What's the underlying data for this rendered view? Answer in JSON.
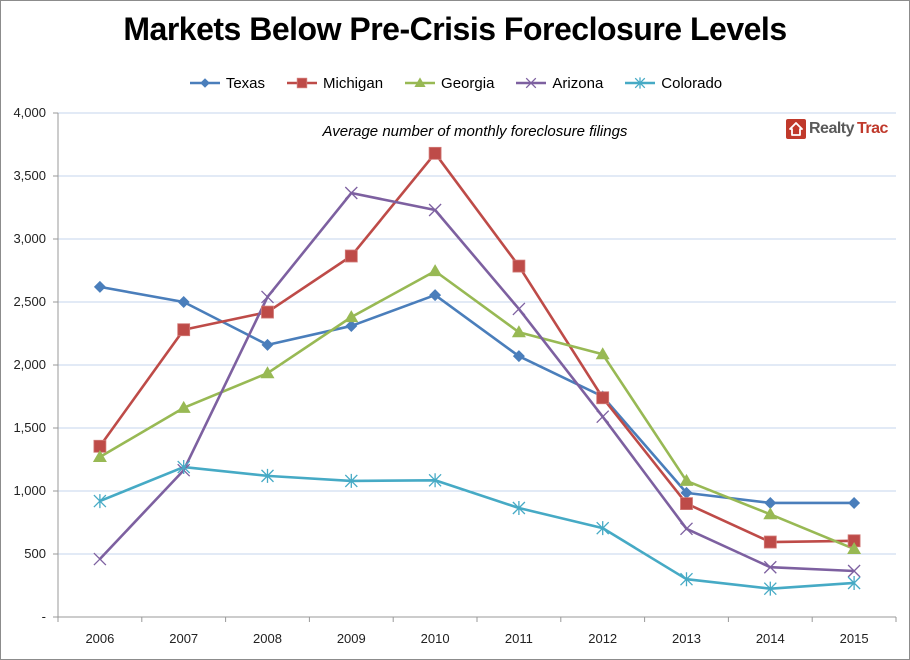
{
  "chart_data": {
    "type": "line",
    "title": "Markets Below Pre-Crisis Foreclosure Levels",
    "subtitle": "Average number of monthly foreclosure filings",
    "xlabel": "",
    "ylabel": "",
    "ylim": [
      0,
      4000
    ],
    "yticks": [
      0,
      500,
      1000,
      1500,
      2000,
      2500,
      3000,
      3500,
      4000
    ],
    "ytick_labels": [
      "-",
      "500",
      "1,000",
      "1,500",
      "2,000",
      "2,500",
      "3,000",
      "3,500",
      "4,000"
    ],
    "grid": true,
    "legend_position": "top",
    "categories": [
      "2006",
      "2007",
      "2008",
      "2009",
      "2010",
      "2011",
      "2012",
      "2013",
      "2014",
      "2015"
    ],
    "series": [
      {
        "name": "Texas",
        "color": "#4a7ebb",
        "marker": "diamond",
        "values": [
          2620,
          2500,
          2160,
          2310,
          2555,
          2070,
          1750,
          985,
          905,
          905
        ]
      },
      {
        "name": "Michigan",
        "color": "#be4b48",
        "marker": "square",
        "values": [
          1355,
          2280,
          2420,
          2865,
          3680,
          2785,
          1740,
          900,
          595,
          605
        ]
      },
      {
        "name": "Georgia",
        "color": "#98b954",
        "marker": "triangle",
        "values": [
          1270,
          1660,
          1935,
          2380,
          2745,
          2260,
          2085,
          1080,
          815,
          540
        ]
      },
      {
        "name": "Arizona",
        "color": "#7d60a0",
        "marker": "x",
        "values": [
          460,
          1165,
          2540,
          3365,
          3230,
          2445,
          1590,
          700,
          395,
          365
        ]
      },
      {
        "name": "Colorado",
        "color": "#46aac5",
        "marker": "star",
        "values": [
          920,
          1190,
          1120,
          1080,
          1085,
          865,
          705,
          300,
          225,
          270
        ]
      }
    ]
  },
  "logo": {
    "part1": "Realty",
    "part2": "Trac"
  }
}
